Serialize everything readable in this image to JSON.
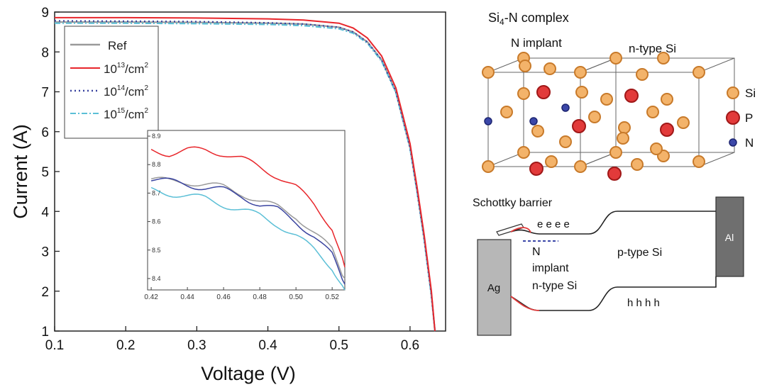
{
  "main_chart": {
    "xlabel": "Voltage (V)",
    "ylabel": "Current (A)"
  },
  "legend": {
    "items": [
      {
        "label": "Ref",
        "sup": ""
      },
      {
        "label": "10",
        "sup": "13",
        "suffix": "/cm"
      },
      {
        "label": "10",
        "sup": "14",
        "suffix": "/cm"
      },
      {
        "label": "10",
        "sup": "15",
        "suffix": "/cm"
      }
    ],
    "sup2": "2"
  },
  "lattice": {
    "title": "Si",
    "title_sub": "4",
    "title_rest": "-N complex",
    "left_label": "N implant",
    "right_label": "n-type Si",
    "key": [
      {
        "symbol": "Si",
        "color": "#f3b36a",
        "edge": "#c87a2a"
      },
      {
        "symbol": "P",
        "color": "#e23a3a",
        "edge": "#a01818"
      },
      {
        "symbol": "N",
        "color": "#3b47a8",
        "edge": "#1c2470"
      }
    ]
  },
  "band": {
    "schottky": "Schottky barrier",
    "electrons": "e e e e",
    "n_implant_1": "N",
    "n_implant_2": "implant",
    "n_type": "n-type Si",
    "p_type": "p-type Si",
    "holes": "h h h h",
    "ag": "Ag",
    "al": "Al"
  },
  "chart_data": [
    {
      "type": "line",
      "xlabel": "Voltage (V)",
      "ylabel": "Current (A)",
      "xlim": [
        0.1,
        0.65
      ],
      "ylim": [
        1,
        9
      ],
      "xticks": [
        0.1,
        0.2,
        0.3,
        0.4,
        0.5,
        0.6
      ],
      "yticks": [
        1,
        2,
        3,
        4,
        5,
        6,
        7,
        8,
        9
      ],
      "legend_placement": "top-left",
      "grid": false,
      "x": [
        0.1,
        0.2,
        0.3,
        0.4,
        0.45,
        0.5,
        0.52,
        0.54,
        0.56,
        0.58,
        0.6,
        0.61,
        0.62,
        0.63,
        0.635
      ],
      "series": [
        {
          "name": "Ref",
          "color": "#9a9a9a",
          "style": "solid",
          "values": [
            8.75,
            8.75,
            8.74,
            8.72,
            8.7,
            8.62,
            8.5,
            8.25,
            7.8,
            7.0,
            5.6,
            4.5,
            3.3,
            1.9,
            1.0
          ]
        },
        {
          "name": "10^13/cm^2",
          "color": "#e8262b",
          "style": "solid",
          "values": [
            8.86,
            8.86,
            8.85,
            8.83,
            8.8,
            8.72,
            8.6,
            8.35,
            7.9,
            7.1,
            5.7,
            4.6,
            3.4,
            2.0,
            1.0
          ]
        },
        {
          "name": "10^14/cm^2",
          "color": "#3a44a0",
          "style": "dotted",
          "values": [
            8.78,
            8.77,
            8.76,
            8.73,
            8.7,
            8.62,
            8.5,
            8.25,
            7.8,
            7.0,
            5.6,
            4.5,
            3.3,
            1.9,
            1.0
          ]
        },
        {
          "name": "10^15/cm^2",
          "color": "#5bbfd6",
          "style": "dashdot",
          "values": [
            8.72,
            8.72,
            8.71,
            8.69,
            8.66,
            8.58,
            8.47,
            8.22,
            7.77,
            6.98,
            5.58,
            4.48,
            3.28,
            1.88,
            1.0
          ]
        }
      ]
    },
    {
      "type": "line",
      "inset": true,
      "xlim": [
        0.418,
        0.527
      ],
      "ylim": [
        8.36,
        8.92
      ],
      "xticks": [
        0.42,
        0.44,
        0.46,
        0.48,
        0.5,
        0.52
      ],
      "yticks": [
        8.4,
        8.5,
        8.6,
        8.7,
        8.8,
        8.9
      ],
      "x": [
        0.42,
        0.43,
        0.44,
        0.45,
        0.46,
        0.47,
        0.48,
        0.49,
        0.5,
        0.51,
        0.52,
        0.527
      ],
      "series": [
        {
          "name": "Ref",
          "color": "#9a9a9a",
          "values": [
            8.75,
            8.74,
            8.74,
            8.73,
            8.72,
            8.7,
            8.67,
            8.65,
            8.62,
            8.56,
            8.5,
            8.4
          ]
        },
        {
          "name": "10^13/cm^2",
          "color": "#e8262b",
          "values": [
            8.85,
            8.84,
            8.85,
            8.85,
            8.84,
            8.82,
            8.79,
            8.76,
            8.72,
            8.66,
            8.58,
            8.44
          ]
        },
        {
          "name": "10^14/cm^2",
          "color": "#3a44a0",
          "values": [
            8.75,
            8.74,
            8.73,
            8.72,
            8.71,
            8.69,
            8.66,
            8.64,
            8.6,
            8.55,
            8.48,
            8.38
          ]
        },
        {
          "name": "10^15/cm^2",
          "color": "#5bbfd6",
          "values": [
            8.71,
            8.7,
            8.69,
            8.68,
            8.66,
            8.64,
            8.62,
            8.59,
            8.55,
            8.5,
            8.44,
            8.36
          ]
        }
      ]
    }
  ]
}
